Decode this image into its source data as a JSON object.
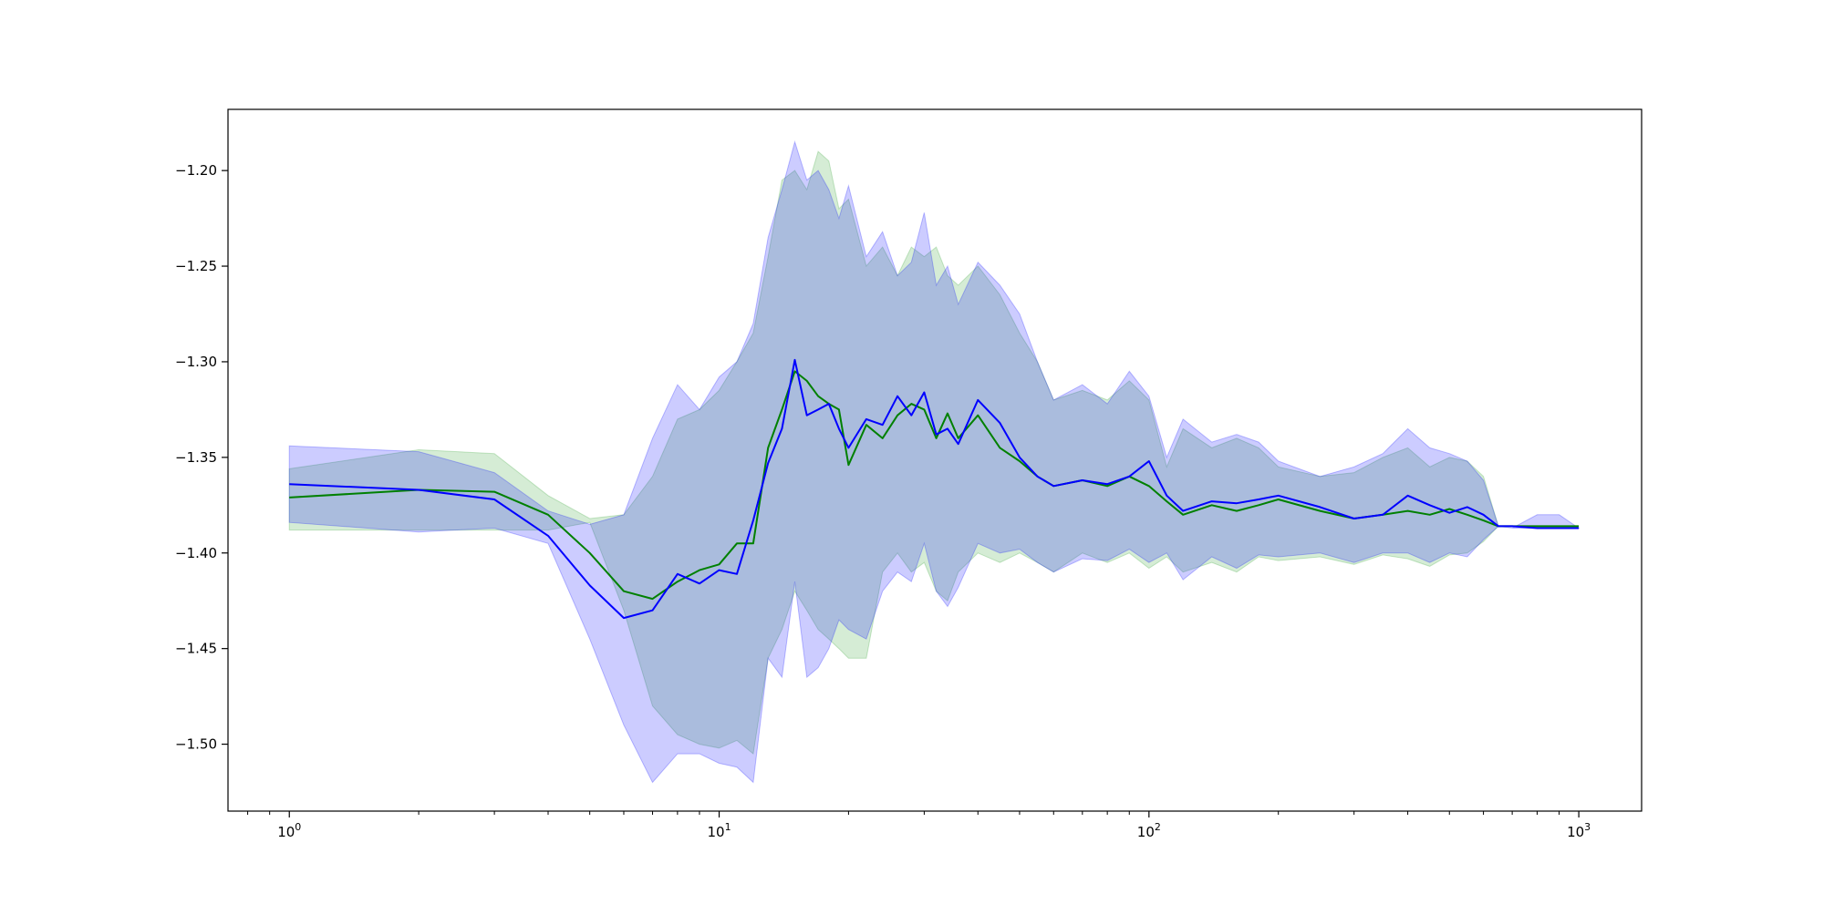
{
  "chart_data": {
    "type": "line",
    "xscale": "log",
    "xlim": [
      0.72,
      1400
    ],
    "ylim": [
      -1.535,
      -1.168
    ],
    "grid": false,
    "legend": "none",
    "x_ticks": [
      {
        "base": "10",
        "exp": "0",
        "value": 1
      },
      {
        "base": "10",
        "exp": "1",
        "value": 10
      },
      {
        "base": "10",
        "exp": "2",
        "value": 100
      },
      {
        "base": "10",
        "exp": "3",
        "value": 1000
      }
    ],
    "y_ticks": [
      {
        "label": "−1.20",
        "value": -1.2
      },
      {
        "label": "−1.25",
        "value": -1.25
      },
      {
        "label": "−1.30",
        "value": -1.3
      },
      {
        "label": "−1.35",
        "value": -1.35
      },
      {
        "label": "−1.40",
        "value": -1.4
      },
      {
        "label": "−1.45",
        "value": -1.45
      },
      {
        "label": "−1.50",
        "value": -1.5
      }
    ],
    "series": [
      {
        "color": "#008000",
        "band_color": "#2ca02c",
        "x": [
          1,
          2,
          3,
          4,
          5,
          6,
          7,
          8,
          9,
          10,
          11,
          12,
          13,
          14,
          15,
          16,
          17,
          18,
          19,
          20,
          22,
          24,
          26,
          28,
          30,
          32,
          34,
          36,
          40,
          45,
          50,
          55,
          60,
          70,
          80,
          90,
          100,
          110,
          120,
          140,
          160,
          180,
          200,
          250,
          300,
          350,
          400,
          450,
          500,
          550,
          600,
          650,
          700,
          800,
          900,
          1000
        ],
        "y": [
          -1.371,
          -1.367,
          -1.368,
          -1.38,
          -1.4,
          -1.42,
          -1.424,
          -1.415,
          -1.409,
          -1.406,
          -1.395,
          -1.395,
          -1.345,
          -1.325,
          -1.305,
          -1.31,
          -1.318,
          -1.322,
          -1.325,
          -1.354,
          -1.333,
          -1.34,
          -1.328,
          -1.322,
          -1.325,
          -1.34,
          -1.327,
          -1.34,
          -1.328,
          -1.345,
          -1.352,
          -1.36,
          -1.365,
          -1.362,
          -1.365,
          -1.36,
          -1.365,
          -1.373,
          -1.38,
          -1.375,
          -1.378,
          -1.375,
          -1.372,
          -1.378,
          -1.382,
          -1.38,
          -1.378,
          -1.38,
          -1.377,
          -1.38,
          -1.383,
          -1.386,
          -1.386,
          -1.386,
          -1.386,
          -1.386
        ],
        "lower": [
          -1.388,
          -1.388,
          -1.388,
          -1.388,
          -1.384,
          -1.43,
          -1.48,
          -1.495,
          -1.5,
          -1.502,
          -1.498,
          -1.505,
          -1.455,
          -1.44,
          -1.42,
          -1.43,
          -1.44,
          -1.445,
          -1.45,
          -1.455,
          -1.455,
          -1.41,
          -1.4,
          -1.41,
          -1.405,
          -1.42,
          -1.425,
          -1.41,
          -1.4,
          -1.405,
          -1.4,
          -1.405,
          -1.41,
          -1.4,
          -1.405,
          -1.4,
          -1.408,
          -1.402,
          -1.41,
          -1.405,
          -1.41,
          -1.402,
          -1.404,
          -1.402,
          -1.406,
          -1.401,
          -1.403,
          -1.407,
          -1.401,
          -1.4,
          -1.394,
          -1.386,
          -1.386,
          -1.386,
          -1.386,
          -1.386
        ],
        "upper": [
          -1.356,
          -1.346,
          -1.348,
          -1.37,
          -1.382,
          -1.38,
          -1.36,
          -1.33,
          -1.325,
          -1.315,
          -1.3,
          -1.285,
          -1.245,
          -1.205,
          -1.2,
          -1.21,
          -1.19,
          -1.195,
          -1.22,
          -1.215,
          -1.25,
          -1.24,
          -1.255,
          -1.24,
          -1.245,
          -1.24,
          -1.255,
          -1.26,
          -1.25,
          -1.265,
          -1.285,
          -1.3,
          -1.32,
          -1.315,
          -1.32,
          -1.31,
          -1.32,
          -1.355,
          -1.335,
          -1.345,
          -1.34,
          -1.345,
          -1.355,
          -1.36,
          -1.358,
          -1.35,
          -1.345,
          -1.355,
          -1.35,
          -1.352,
          -1.36,
          -1.386,
          -1.386,
          -1.386,
          -1.386,
          -1.386
        ]
      },
      {
        "color": "#0000ff",
        "band_color": "#0000ff",
        "x": [
          1,
          2,
          3,
          4,
          5,
          6,
          7,
          8,
          9,
          10,
          11,
          12,
          13,
          14,
          15,
          16,
          17,
          18,
          19,
          20,
          22,
          24,
          26,
          28,
          30,
          32,
          34,
          36,
          40,
          45,
          50,
          55,
          60,
          70,
          80,
          90,
          100,
          110,
          120,
          140,
          160,
          180,
          200,
          250,
          300,
          350,
          400,
          450,
          500,
          550,
          600,
          650,
          700,
          800,
          900,
          1000
        ],
        "y": [
          -1.364,
          -1.367,
          -1.372,
          -1.391,
          -1.417,
          -1.434,
          -1.43,
          -1.411,
          -1.416,
          -1.409,
          -1.411,
          -1.383,
          -1.353,
          -1.335,
          -1.299,
          -1.328,
          -1.325,
          -1.322,
          -1.335,
          -1.345,
          -1.33,
          -1.333,
          -1.318,
          -1.328,
          -1.316,
          -1.338,
          -1.335,
          -1.343,
          -1.32,
          -1.332,
          -1.35,
          -1.36,
          -1.365,
          -1.362,
          -1.364,
          -1.36,
          -1.352,
          -1.37,
          -1.378,
          -1.373,
          -1.374,
          -1.372,
          -1.37,
          -1.376,
          -1.382,
          -1.38,
          -1.37,
          -1.375,
          -1.379,
          -1.376,
          -1.38,
          -1.386,
          -1.386,
          -1.387,
          -1.387,
          -1.387
        ],
        "lower": [
          -1.384,
          -1.389,
          -1.387,
          -1.395,
          -1.445,
          -1.49,
          -1.52,
          -1.505,
          -1.505,
          -1.51,
          -1.512,
          -1.52,
          -1.455,
          -1.465,
          -1.415,
          -1.465,
          -1.46,
          -1.45,
          -1.435,
          -1.44,
          -1.445,
          -1.42,
          -1.41,
          -1.415,
          -1.395,
          -1.42,
          -1.428,
          -1.418,
          -1.395,
          -1.4,
          -1.398,
          -1.405,
          -1.41,
          -1.403,
          -1.404,
          -1.398,
          -1.405,
          -1.4,
          -1.414,
          -1.402,
          -1.408,
          -1.401,
          -1.402,
          -1.4,
          -1.405,
          -1.4,
          -1.4,
          -1.405,
          -1.4,
          -1.402,
          -1.393,
          -1.386,
          -1.387,
          -1.387,
          -1.387,
          -1.387
        ],
        "upper": [
          -1.344,
          -1.347,
          -1.358,
          -1.378,
          -1.385,
          -1.38,
          -1.34,
          -1.312,
          -1.325,
          -1.308,
          -1.3,
          -1.28,
          -1.235,
          -1.21,
          -1.185,
          -1.205,
          -1.2,
          -1.21,
          -1.225,
          -1.208,
          -1.245,
          -1.232,
          -1.255,
          -1.248,
          -1.222,
          -1.26,
          -1.25,
          -1.27,
          -1.248,
          -1.26,
          -1.275,
          -1.3,
          -1.32,
          -1.312,
          -1.322,
          -1.305,
          -1.318,
          -1.35,
          -1.33,
          -1.342,
          -1.338,
          -1.342,
          -1.352,
          -1.36,
          -1.355,
          -1.348,
          -1.335,
          -1.345,
          -1.348,
          -1.352,
          -1.362,
          -1.386,
          -1.387,
          -1.38,
          -1.38,
          -1.387
        ]
      }
    ]
  }
}
